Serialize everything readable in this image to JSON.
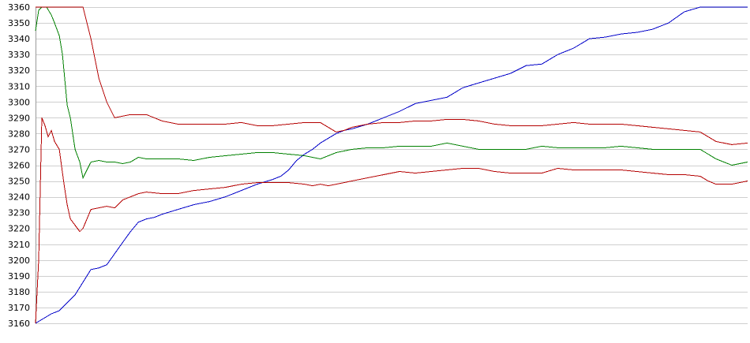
{
  "chart_data": {
    "type": "line",
    "title": "",
    "xlabel": "",
    "ylabel": "",
    "ylim": [
      3160,
      3360
    ],
    "xlim": [
      0,
      450
    ],
    "grid": true,
    "legend": "none",
    "y_ticks": [
      3160,
      3170,
      3180,
      3190,
      3200,
      3210,
      3220,
      3230,
      3240,
      3250,
      3260,
      3270,
      3280,
      3290,
      3300,
      3310,
      3320,
      3330,
      3340,
      3350,
      3360
    ],
    "y_tick_labels": [
      "3160",
      "3170",
      "3180",
      "3190",
      "3200",
      "3210",
      "3220",
      "3230",
      "3240",
      "3250",
      "3260",
      "3270",
      "3280",
      "3290",
      "3300",
      "3310",
      "3320",
      "3330",
      "3340",
      "3350",
      "3360"
    ],
    "colors": {
      "blue": "#0000c8",
      "green": "#008000",
      "red": "#b40000",
      "grid": "#cfcfcf"
    },
    "series": [
      {
        "color": "#0000c8",
        "x": [
          0,
          5,
          10,
          15,
          20,
          22,
          25,
          30,
          35,
          40,
          45,
          50,
          55,
          60,
          65,
          70,
          75,
          80,
          90,
          100,
          110,
          120,
          130,
          140,
          150,
          155,
          160,
          165,
          170,
          175,
          180,
          185,
          190,
          195,
          200,
          210,
          220,
          230,
          240,
          250,
          260,
          270,
          280,
          290,
          300,
          310,
          320,
          330,
          340,
          350,
          360,
          365,
          370,
          380,
          390,
          400,
          410,
          420,
          430,
          440,
          450
        ],
        "y": [
          3160,
          3163,
          3166,
          3168,
          3173,
          3175,
          3178,
          3186,
          3194,
          3195,
          3197,
          3204,
          3211,
          3218,
          3224,
          3226,
          3227,
          3229,
          3232,
          3235,
          3237,
          3240,
          3244,
          3248,
          3251,
          3253,
          3257,
          3263,
          3267,
          3270,
          3274,
          3277,
          3280,
          3282,
          3283,
          3286,
          3290,
          3294,
          3299,
          3301,
          3303,
          3309,
          3312,
          3315,
          3318,
          3323,
          3324,
          3330,
          3334,
          3340,
          3341,
          3342,
          3343,
          3344,
          3346,
          3350,
          3357,
          3360,
          3360,
          3360,
          3360
        ]
      },
      {
        "color": "#008000",
        "x": [
          0,
          2,
          4,
          7,
          10,
          12,
          15,
          17,
          20,
          22,
          25,
          28,
          30,
          35,
          40,
          45,
          50,
          55,
          60,
          65,
          70,
          80,
          90,
          100,
          110,
          120,
          130,
          140,
          150,
          160,
          170,
          175,
          180,
          185,
          190,
          200,
          210,
          220,
          230,
          240,
          250,
          260,
          270,
          280,
          290,
          300,
          310,
          320,
          330,
          340,
          350,
          360,
          370,
          380,
          390,
          400,
          410,
          420,
          430,
          440,
          450
        ],
        "y": [
          3345,
          3358,
          3360,
          3360,
          3355,
          3350,
          3342,
          3330,
          3298,
          3290,
          3270,
          3262,
          3252,
          3262,
          3263,
          3262,
          3262,
          3261,
          3262,
          3265,
          3264,
          3264,
          3264,
          3263,
          3265,
          3266,
          3267,
          3268,
          3268,
          3267,
          3266,
          3265,
          3264,
          3266,
          3268,
          3270,
          3271,
          3271,
          3272,
          3272,
          3272,
          3274,
          3272,
          3270,
          3270,
          3270,
          3270,
          3272,
          3271,
          3271,
          3271,
          3271,
          3272,
          3271,
          3270,
          3270,
          3270,
          3270,
          3264,
          3260,
          3262
        ]
      },
      {
        "color": "#b40000",
        "x": [
          0,
          2,
          5,
          10,
          15,
          20,
          25,
          30,
          35,
          40,
          45,
          50,
          55,
          60,
          65,
          70,
          80,
          90,
          100,
          110,
          120,
          130,
          140,
          150,
          160,
          170,
          180,
          185,
          190,
          195,
          200,
          210,
          220,
          230,
          240,
          250,
          260,
          270,
          280,
          290,
          300,
          310,
          320,
          330,
          340,
          350,
          360,
          370,
          380,
          390,
          400,
          410,
          420,
          425,
          430,
          440,
          450
        ],
        "y": [
          3360,
          3360,
          3360,
          3360,
          3360,
          3360,
          3360,
          3360,
          3340,
          3315,
          3300,
          3290,
          3291,
          3292,
          3292,
          3292,
          3288,
          3286,
          3286,
          3286,
          3286,
          3287,
          3285,
          3285,
          3286,
          3287,
          3287,
          3284,
          3281,
          3282,
          3284,
          3286,
          3287,
          3287,
          3288,
          3288,
          3289,
          3289,
          3288,
          3286,
          3285,
          3285,
          3285,
          3286,
          3287,
          3286,
          3286,
          3286,
          3285,
          3284,
          3283,
          3282,
          3281,
          3278,
          3275,
          3273,
          3274
        ]
      },
      {
        "color": "#b40000",
        "x": [
          0,
          2,
          4,
          6,
          8,
          10,
          12,
          15,
          18,
          20,
          22,
          25,
          28,
          30,
          35,
          40,
          45,
          50,
          55,
          60,
          65,
          70,
          80,
          90,
          100,
          110,
          120,
          130,
          140,
          150,
          160,
          170,
          175,
          180,
          185,
          190,
          200,
          210,
          220,
          230,
          240,
          250,
          260,
          270,
          280,
          290,
          300,
          310,
          320,
          330,
          340,
          350,
          360,
          370,
          380,
          390,
          400,
          410,
          420,
          425,
          430,
          440,
          450
        ],
        "y": [
          3160,
          3200,
          3290,
          3285,
          3278,
          3282,
          3275,
          3270,
          3248,
          3235,
          3226,
          3222,
          3218,
          3220,
          3232,
          3233,
          3234,
          3233,
          3238,
          3240,
          3242,
          3243,
          3242,
          3242,
          3244,
          3245,
          3246,
          3248,
          3249,
          3249,
          3249,
          3248,
          3247,
          3248,
          3247,
          3248,
          3250,
          3252,
          3254,
          3256,
          3255,
          3256,
          3257,
          3258,
          3258,
          3256,
          3255,
          3255,
          3255,
          3258,
          3257,
          3257,
          3257,
          3257,
          3256,
          3255,
          3254,
          3254,
          3253,
          3250,
          3248,
          3248,
          3250
        ]
      }
    ]
  }
}
